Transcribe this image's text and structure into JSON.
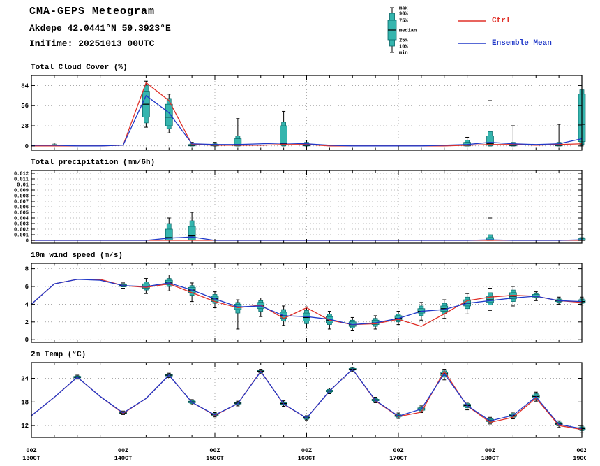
{
  "header": {
    "title": "CMA-GEPS Meteogram",
    "station": "Akdepe 42.0441°N 59.3923°E",
    "initime": "IniTime: 20251013 00UTC"
  },
  "legend": {
    "box_labels": [
      "max",
      "90%",
      "75%",
      "median",
      "25%",
      "10%",
      "min"
    ],
    "ctrl_label": "Ctrl",
    "mean_label": "Ensemble Mean",
    "ctrl_color": "#e03028",
    "mean_color": "#2038c8",
    "box_fill": "#35b5ae",
    "box_stroke": "#066666"
  },
  "x_axis": {
    "n_points": 25,
    "points_per_day": 4,
    "labels": [
      {
        "hour": "00Z",
        "date": "13OCT"
      },
      {
        "hour": "00Z",
        "date": "14OCT"
      },
      {
        "hour": "00Z",
        "date": "15OCT"
      },
      {
        "hour": "00Z",
        "date": "16OCT"
      },
      {
        "hour": "00Z",
        "date": "17OCT"
      },
      {
        "hour": "00Z",
        "date": "18OCT"
      },
      {
        "hour": "00Z",
        "date": "19OCT"
      }
    ]
  },
  "chart_data": [
    {
      "type": "box+line",
      "title": "Total Cloud Cover (%)",
      "ylabel": "%",
      "ylim": [
        -6,
        98
      ],
      "yticks": [
        0,
        28,
        56,
        84
      ],
      "ytick_labels": [
        "0",
        "28",
        "56",
        "84"
      ],
      "tick_font": 9,
      "ctrl": [
        0,
        0,
        0,
        0,
        1,
        88,
        63,
        2,
        1,
        1,
        1,
        2,
        2,
        0,
        0,
        0,
        0,
        0,
        0,
        1,
        2,
        2,
        1,
        2,
        3
      ],
      "mean": [
        1,
        1,
        0,
        0,
        1,
        70,
        46,
        3,
        2,
        2,
        3,
        4,
        3,
        1,
        0,
        0,
        0,
        0,
        1,
        2,
        5,
        3,
        2,
        3,
        10
      ],
      "boxes": [
        null,
        [
          0,
          0,
          0,
          0.5,
          1,
          2,
          4
        ],
        null,
        null,
        null,
        [
          26,
          32,
          40,
          58,
          76,
          84,
          90
        ],
        [
          18,
          24,
          28,
          40,
          58,
          66,
          72
        ],
        [
          0,
          0,
          0,
          1,
          2,
          3,
          5
        ],
        [
          0,
          0,
          0,
          1,
          2,
          3,
          5
        ],
        [
          0,
          0,
          0,
          2,
          10,
          14,
          38
        ],
        null,
        [
          0,
          0,
          1,
          3,
          28,
          33,
          48
        ],
        [
          0,
          0,
          0,
          1,
          3,
          5,
          8
        ],
        null,
        null,
        null,
        null,
        null,
        null,
        [
          0,
          0,
          0,
          1,
          5,
          8,
          12
        ],
        [
          0,
          0,
          1,
          3,
          14,
          20,
          63
        ],
        [
          0,
          0,
          0,
          1,
          3,
          5,
          28
        ],
        null,
        [
          0,
          0,
          0,
          1,
          3,
          5,
          30
        ],
        [
          0,
          2,
          6,
          30,
          72,
          78,
          82
        ]
      ]
    },
    {
      "type": "box+line",
      "title": "Total precipitation (mm/6h)",
      "ylabel": "mm/6h",
      "ylim": [
        -0.0005,
        0.0125
      ],
      "yticks": [
        0,
        0.001,
        0.002,
        0.003,
        0.004,
        0.005,
        0.006,
        0.007,
        0.008,
        0.009,
        0.01,
        0.011,
        0.012
      ],
      "ytick_labels": [
        "0",
        "0.001",
        "0.002",
        "0.003",
        "0.004",
        "0.005",
        "0.006",
        "0.007",
        "0.008",
        "0.009",
        "0.01",
        "0.011",
        "0.012"
      ],
      "tick_font": 7,
      "ctrl": [
        0,
        0,
        0,
        0,
        0,
        0,
        0,
        0,
        0,
        0,
        0,
        0,
        0,
        0,
        0,
        0,
        0,
        0,
        0,
        0,
        0,
        0,
        0,
        0,
        0
      ],
      "mean": [
        0,
        0,
        0,
        0,
        0,
        0,
        0.0004,
        0.0006,
        0,
        0,
        0,
        0,
        0,
        0,
        0,
        0,
        0,
        0,
        0,
        0,
        0.0001,
        0,
        0,
        0,
        0.0001
      ],
      "boxes": [
        null,
        null,
        null,
        null,
        null,
        null,
        [
          0,
          0,
          0,
          0.0005,
          0.002,
          0.003,
          0.004
        ],
        [
          0,
          0,
          0,
          0.0008,
          0.0025,
          0.0035,
          0.005
        ],
        null,
        null,
        null,
        null,
        null,
        null,
        null,
        null,
        null,
        null,
        null,
        null,
        [
          0,
          0,
          0,
          0,
          0.0005,
          0.001,
          0.004
        ],
        null,
        null,
        null,
        [
          0,
          0,
          0,
          0,
          0.0003,
          0.0005,
          0.001
        ]
      ]
    },
    {
      "type": "box+line",
      "title": "10m wind speed (m/s)",
      "ylabel": "m/s",
      "ylim": [
        -0.3,
        8.6
      ],
      "yticks": [
        0,
        2,
        4,
        6,
        8
      ],
      "ytick_labels": [
        "0",
        "2",
        "4",
        "6",
        "8"
      ],
      "tick_font": 9,
      "ctrl": [
        4.0,
        6.3,
        6.8,
        6.8,
        6.1,
        5.9,
        6.3,
        5.3,
        4.3,
        3.6,
        3.9,
        2.4,
        3.6,
        2.2,
        1.7,
        1.8,
        2.3,
        1.5,
        2.9,
        4.4,
        4.8,
        5.0,
        4.9,
        4.4,
        4.2
      ],
      "mean": [
        4.0,
        6.3,
        6.8,
        6.7,
        6.1,
        6.0,
        6.4,
        5.6,
        4.6,
        3.7,
        3.8,
        2.7,
        2.6,
        2.3,
        1.7,
        1.9,
        2.4,
        3.2,
        3.4,
        4.1,
        4.4,
        4.7,
        4.9,
        4.4,
        4.3
      ],
      "boxes": [
        null,
        null,
        null,
        null,
        [
          5.8,
          5.95,
          6.0,
          6.1,
          6.2,
          6.3,
          6.4
        ],
        [
          5.2,
          5.6,
          5.8,
          6.0,
          6.3,
          6.5,
          6.9
        ],
        [
          5.5,
          6.0,
          6.2,
          6.4,
          6.7,
          6.9,
          7.3
        ],
        [
          4.3,
          5.0,
          5.3,
          5.6,
          5.9,
          6.1,
          6.4
        ],
        [
          3.6,
          4.1,
          4.3,
          4.6,
          4.9,
          5.1,
          5.4
        ],
        [
          1.2,
          3.0,
          3.4,
          3.7,
          4.0,
          4.2,
          4.5
        ],
        [
          2.6,
          3.2,
          3.5,
          3.8,
          4.2,
          4.4,
          4.7
        ],
        [
          1.6,
          2.1,
          2.4,
          2.7,
          3.1,
          3.4,
          3.8
        ],
        [
          1.3,
          1.8,
          2.1,
          2.5,
          3.0,
          3.3,
          3.7
        ],
        [
          1.2,
          1.7,
          1.9,
          2.2,
          2.6,
          2.9,
          3.2
        ],
        [
          1.0,
          1.3,
          1.5,
          1.7,
          2.0,
          2.2,
          2.5
        ],
        [
          1.2,
          1.5,
          1.7,
          1.9,
          2.2,
          2.4,
          2.7
        ],
        [
          1.7,
          2.0,
          2.2,
          2.4,
          2.7,
          2.9,
          3.2
        ],
        [
          2.2,
          2.7,
          3.0,
          3.2,
          3.5,
          3.8,
          4.2
        ],
        [
          2.4,
          2.9,
          3.2,
          3.5,
          3.8,
          4.1,
          4.5
        ],
        [
          2.9,
          3.5,
          3.8,
          4.1,
          4.5,
          4.8,
          5.2
        ],
        [
          3.3,
          3.9,
          4.2,
          4.5,
          4.9,
          5.3,
          5.8
        ],
        [
          3.8,
          4.3,
          4.6,
          4.9,
          5.3,
          5.6,
          6.0
        ],
        [
          4.4,
          4.7,
          4.8,
          4.9,
          5.1,
          5.2,
          5.4
        ],
        [
          4.0,
          4.2,
          4.3,
          4.4,
          4.5,
          4.6,
          4.8
        ],
        [
          3.9,
          4.1,
          4.2,
          4.3,
          4.5,
          4.6,
          4.8
        ]
      ]
    },
    {
      "type": "box+line",
      "title": "2m Temp (°C)",
      "ylabel": "°C",
      "ylim": [
        9,
        28
      ],
      "yticks": [
        12,
        18,
        24
      ],
      "ytick_labels": [
        "12",
        "18",
        "24"
      ],
      "tick_font": 9,
      "ctrl": [
        14.5,
        19.2,
        24.3,
        19.4,
        15.1,
        18.9,
        24.8,
        17.9,
        14.6,
        17.6,
        25.8,
        17.4,
        13.9,
        20.8,
        26.3,
        18.3,
        14.3,
        15.4,
        25.8,
        17.0,
        12.8,
        14.1,
        19.0,
        12.0,
        11.0
      ],
      "mean": [
        14.5,
        19.2,
        24.3,
        19.4,
        15.2,
        18.9,
        24.8,
        17.9,
        14.7,
        17.6,
        25.7,
        17.5,
        13.9,
        20.8,
        26.3,
        18.4,
        14.4,
        16.2,
        25.2,
        17.1,
        13.2,
        14.6,
        19.3,
        12.3,
        11.2
      ],
      "boxes": [
        null,
        null,
        [
          23.8,
          24.0,
          24.1,
          24.3,
          24.5,
          24.6,
          24.8
        ],
        null,
        [
          14.8,
          15.0,
          15.1,
          15.2,
          15.4,
          15.5,
          15.7
        ],
        null,
        [
          24.2,
          24.4,
          24.6,
          24.8,
          25.0,
          25.1,
          25.3
        ],
        [
          17.3,
          17.6,
          17.8,
          18.0,
          18.2,
          18.4,
          18.6
        ],
        [
          14.2,
          14.4,
          14.6,
          14.8,
          15.0,
          15.1,
          15.3
        ],
        [
          17.0,
          17.3,
          17.5,
          17.7,
          17.9,
          18.0,
          18.2
        ],
        [
          25.1,
          25.4,
          25.6,
          25.8,
          26.0,
          26.1,
          26.3
        ],
        [
          16.9,
          17.2,
          17.4,
          17.6,
          17.8,
          18.0,
          18.3
        ],
        [
          13.4,
          13.6,
          13.8,
          14.0,
          14.2,
          14.3,
          14.5
        ],
        [
          20.1,
          20.4,
          20.6,
          20.8,
          21.0,
          21.2,
          21.5
        ],
        [
          25.7,
          26.0,
          26.1,
          26.3,
          26.5,
          26.6,
          26.8
        ],
        [
          17.8,
          18.1,
          18.3,
          18.5,
          18.7,
          18.9,
          19.2
        ],
        [
          13.8,
          14.1,
          14.3,
          14.5,
          14.7,
          14.9,
          15.2
        ],
        [
          15.3,
          15.7,
          15.9,
          16.2,
          16.5,
          16.7,
          17.0
        ],
        [
          23.6,
          24.3,
          24.7,
          25.2,
          25.6,
          25.9,
          26.3
        ],
        [
          16.0,
          16.5,
          16.8,
          17.1,
          17.4,
          17.6,
          17.9
        ],
        [
          12.4,
          12.8,
          13.0,
          13.3,
          13.6,
          13.8,
          14.1
        ],
        [
          13.7,
          14.1,
          14.3,
          14.6,
          14.9,
          15.1,
          15.4
        ],
        [
          18.2,
          18.7,
          19.0,
          19.4,
          19.8,
          20.1,
          20.5
        ],
        [
          11.5,
          11.9,
          12.1,
          12.4,
          12.7,
          12.9,
          13.2
        ],
        [
          10.3,
          10.7,
          10.9,
          11.2,
          11.5,
          11.7,
          12.0
        ]
      ]
    }
  ]
}
